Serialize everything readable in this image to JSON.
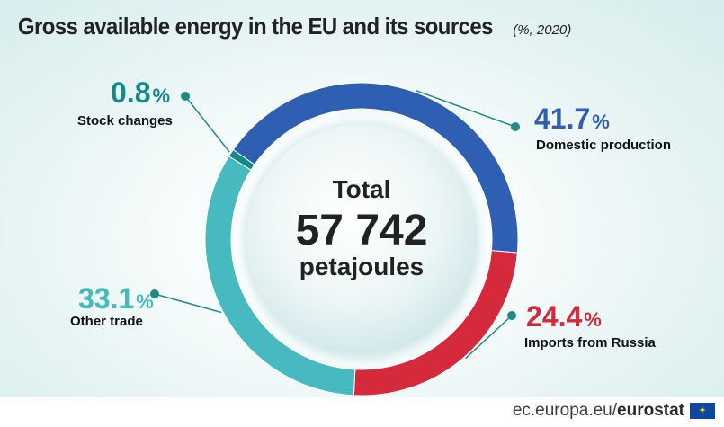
{
  "title": "Gross available energy in the EU and its sources",
  "subtitle": "(%, 2020)",
  "center": {
    "line1": "Total",
    "line2": "57 742",
    "line3": "petajoules"
  },
  "footer": {
    "domain": "ec.europa.eu/",
    "brand": "eurostat"
  },
  "colors": {
    "domestic": "#2f5fb3",
    "russia": "#d42a3b",
    "trade": "#46bac0",
    "stock": "#148a86",
    "line": "#1f8a86"
  },
  "chart_data": {
    "type": "pie",
    "title": "Gross available energy in the EU and its sources",
    "subtitle": "(%, 2020)",
    "unit": "%",
    "slices": [
      {
        "label": "Domestic production",
        "value": 41.7,
        "display": "41.7",
        "color": "#2f5fb3"
      },
      {
        "label": "Imports from Russia",
        "value": 24.4,
        "display": "24.4",
        "color": "#d42a3b"
      },
      {
        "label": "Other trade",
        "value": 33.1,
        "display": "33.1",
        "color": "#46bac0"
      },
      {
        "label": "Stock changes",
        "value": 0.8,
        "display": "0.8",
        "color": "#148a86"
      }
    ]
  }
}
